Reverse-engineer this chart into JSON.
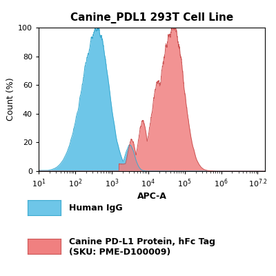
{
  "title": "Canine_PDL1 293T Cell Line",
  "xlabel": "APC-A",
  "ylabel": "Count (%)",
  "ylim": [
    0,
    100
  ],
  "ytick_positions": [
    0,
    20,
    40,
    60,
    80,
    100
  ],
  "ytick_labels": [
    "0",
    "20",
    "40",
    "60",
    "80",
    "100"
  ],
  "xtick_positions": [
    10,
    100,
    1000,
    10000,
    100000,
    1000000,
    10000000
  ],
  "blue_color": "#6EC6E8",
  "blue_edge": "#3AAAD0",
  "red_color": "#F08080",
  "red_edge": "#CC5555",
  "overlap_color": "#8888BB",
  "background_color": "#ffffff",
  "title_fontsize": 11,
  "axis_fontsize": 9,
  "tick_fontsize": 8,
  "legend_label_blue": "Human IgG",
  "legend_label_red": "Canine PD-L1 Protein, hFc Tag\n(SKU: PME-D100009)"
}
